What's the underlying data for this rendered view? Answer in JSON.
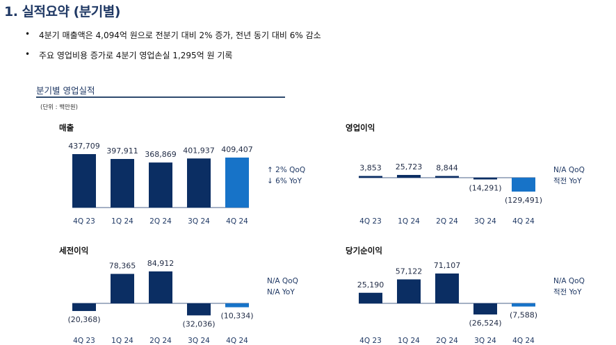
{
  "page": {
    "title": "1. 실적요약 (분기별)",
    "bullet_glyph": "•",
    "bullets": [
      "4분기 매출액은 4,094억 원으로 전분기 대비 2% 증가, 전년 동기 대비 6% 감소",
      "주요 영업비용 증가로 4분기 영업손실 1,295억 원 기록"
    ]
  },
  "section": {
    "title": "분기별 영업실적",
    "unit": "(단위 : 백만원)"
  },
  "colors": {
    "navy": "#0b2e63",
    "highlight": "#1773c8",
    "title": "#1f3864"
  },
  "chart_data": [
    {
      "type": "bar",
      "title": "매출",
      "categories": [
        "4Q 23",
        "1Q 24",
        "2Q 24",
        "3Q 24",
        "4Q 24"
      ],
      "values": [
        437709,
        397911,
        368869,
        401937,
        409407
      ],
      "labels": [
        "437,709",
        "397,911",
        "368,869",
        "401,937",
        "409,407"
      ],
      "highlight_index": 4,
      "notes": [
        "↑ 2% QoQ",
        "↓ 6% YoY"
      ]
    },
    {
      "type": "bar",
      "title": "영업이익",
      "categories": [
        "4Q 23",
        "1Q 24",
        "2Q 24",
        "3Q 24",
        "4Q 24"
      ],
      "values": [
        3853,
        25723,
        8844,
        -14291,
        -129491
      ],
      "labels": [
        "3,853",
        "25,723",
        "8,844",
        "(14,291)",
        "(129,491)"
      ],
      "highlight_index": 4,
      "notes": [
        "N/A QoQ",
        "적전 YoY"
      ]
    },
    {
      "type": "bar",
      "title": "세전이익",
      "categories": [
        "4Q 23",
        "1Q 24",
        "2Q 24",
        "3Q 24",
        "4Q 24"
      ],
      "values": [
        -20368,
        78365,
        84912,
        -32036,
        -10334
      ],
      "labels": [
        "(20,368)",
        "78,365",
        "84,912",
        "(32,036)",
        "(10,334)"
      ],
      "highlight_index": 4,
      "notes": [
        "N/A QoQ",
        "N/A YoY"
      ]
    },
    {
      "type": "bar",
      "title": "당기순이익",
      "categories": [
        "4Q 23",
        "1Q 24",
        "2Q 24",
        "3Q 24",
        "4Q 24"
      ],
      "values": [
        25190,
        57122,
        71107,
        -26524,
        -7588
      ],
      "labels": [
        "25,190",
        "57,122",
        "71,107",
        "(26,524)",
        "(7,588)"
      ],
      "highlight_index": 4,
      "notes": [
        "N/A QoQ",
        "적전 YoY"
      ]
    }
  ]
}
